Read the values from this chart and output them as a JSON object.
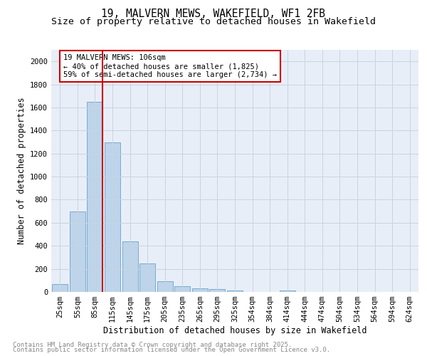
{
  "title_line1": "19, MALVERN MEWS, WAKEFIELD, WF1 2FB",
  "title_line2": "Size of property relative to detached houses in Wakefield",
  "xlabel": "Distribution of detached houses by size in Wakefield",
  "ylabel": "Number of detached properties",
  "bar_labels": [
    "25sqm",
    "55sqm",
    "85sqm",
    "115sqm",
    "145sqm",
    "175sqm",
    "205sqm",
    "235sqm",
    "265sqm",
    "295sqm",
    "325sqm",
    "354sqm",
    "384sqm",
    "414sqm",
    "444sqm",
    "474sqm",
    "504sqm",
    "534sqm",
    "564sqm",
    "594sqm",
    "624sqm"
  ],
  "bar_values": [
    65,
    700,
    1650,
    1300,
    440,
    250,
    95,
    50,
    30,
    25,
    15,
    0,
    0,
    15,
    0,
    0,
    0,
    0,
    0,
    0,
    0
  ],
  "bar_color": "#bdd4ea",
  "bar_edge_color": "#6aa3c8",
  "annotation_text": "19 MALVERN MEWS: 106sqm\n← 40% of detached houses are smaller (1,825)\n59% of semi-detached houses are larger (2,734) →",
  "annotation_box_color": "#ffffff",
  "annotation_box_edge": "#cc0000",
  "ylim": [
    0,
    2100
  ],
  "yticks": [
    0,
    200,
    400,
    600,
    800,
    1000,
    1200,
    1400,
    1600,
    1800,
    2000
  ],
  "grid_color": "#c8d4e0",
  "background_color": "#e8eef8",
  "footer_line1": "Contains HM Land Registry data © Crown copyright and database right 2025.",
  "footer_line2": "Contains public sector information licensed under the Open Government Licence v3.0.",
  "red_line_color": "#cc0000",
  "title_fontsize": 10.5,
  "subtitle_fontsize": 9.5,
  "axis_label_fontsize": 8.5,
  "tick_fontsize": 7.5,
  "annotation_fontsize": 7.5,
  "footer_fontsize": 6.5
}
